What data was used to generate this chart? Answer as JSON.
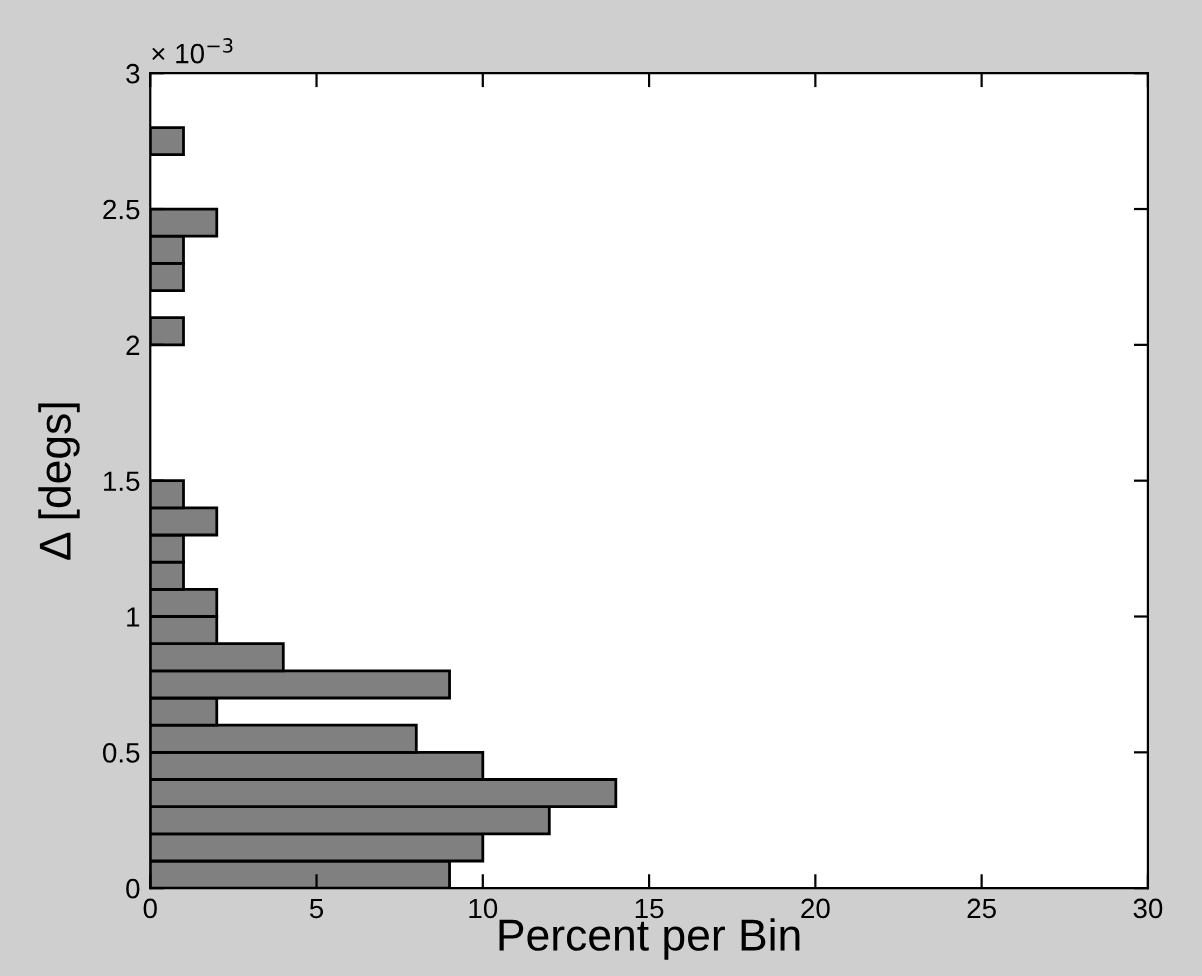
{
  "chart_data": {
    "type": "histogram",
    "orientation": "horizontal",
    "xlabel": "Percent per Bin",
    "ylabel": "Δ [degs]",
    "annotations": [
      "× 10$^{−3}$"
    ],
    "bins": [
      0,
      0.1,
      0.2,
      0.3,
      0.4,
      0.5,
      0.6,
      0.7,
      0.8,
      0.9,
      1.0,
      1.1,
      1.2,
      1.3,
      1.4,
      1.5,
      1.6,
      1.7,
      1.8,
      1.9,
      2.0,
      2.1,
      2.2,
      2.3,
      2.4,
      2.5,
      2.6,
      2.7,
      2.8
    ],
    "values": [
      9,
      10,
      12,
      14,
      10,
      8,
      2,
      9,
      4,
      2,
      2,
      1,
      1,
      2,
      1,
      0,
      0,
      0,
      0,
      0,
      1,
      0,
      1,
      1,
      2,
      0,
      0,
      1
    ],
    "color": "#808080",
    "xlim": [
      0,
      30
    ],
    "xticks": [
      0,
      5,
      10,
      15,
      20,
      25,
      30
    ],
    "ylim": [
      0,
      3
    ],
    "yticks": [
      0,
      {
        "value": 0.5,
        "label": "0.5"
      },
      1,
      {
        "value": 1.5,
        "label": "1.5"
      },
      2,
      {
        "value": 2.5,
        "label": "2.5"
      },
      3
    ],
    "grid": false
  }
}
